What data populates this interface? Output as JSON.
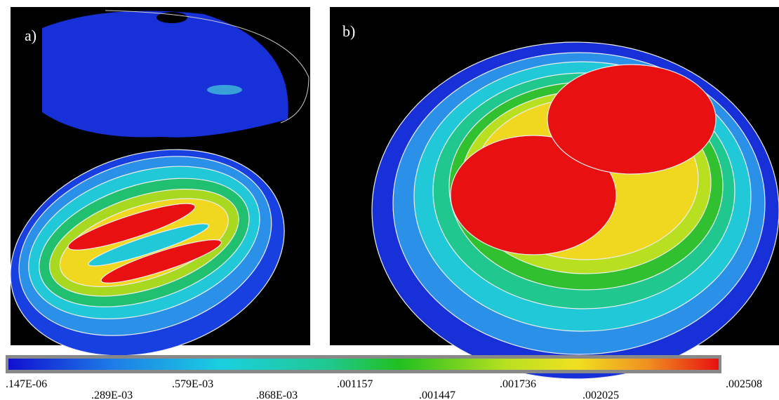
{
  "panels": [
    {
      "label": "a)"
    },
    {
      "label": "b)"
    }
  ],
  "legend": {
    "labels": [
      ".147E-06",
      ".289E-03",
      ".579E-03",
      ".868E-03",
      ".001157",
      ".001447",
      ".001736",
      ".002025",
      ".002508"
    ]
  }
}
